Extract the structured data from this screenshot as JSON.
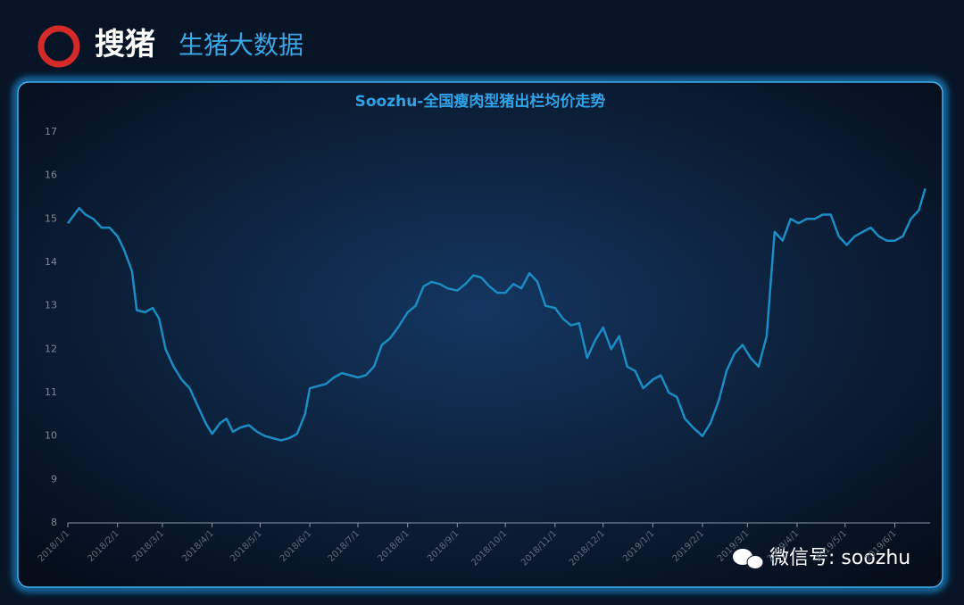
{
  "header": {
    "logo": "搜猪",
    "subtitle": "生猪大数据"
  },
  "watermark": "微信号: soozhu",
  "chart_data": {
    "type": "line",
    "title": "Soozhu-全国瘦肉型猪出栏均价走势",
    "color": "#1b8cc4",
    "x": [
      "2018/1/1",
      "2018/1/5",
      "2018/1/8",
      "2018/1/12",
      "2018/1/17",
      "2018/1/22",
      "2018/1/27",
      "2018/2/1",
      "2018/2/5",
      "2018/2/10",
      "2018/2/13",
      "2018/2/18",
      "2018/2/23",
      "2018/2/27",
      "2018/3/3",
      "2018/3/8",
      "2018/3/13",
      "2018/3/18",
      "2018/3/23",
      "2018/3/28",
      "2018/4/1",
      "2018/4/6",
      "2018/4/10",
      "2018/4/14",
      "2018/4/19",
      "2018/4/24",
      "2018/4/29",
      "2018/5/4",
      "2018/5/9",
      "2018/5/14",
      "2018/5/19",
      "2018/5/24",
      "2018/5/29",
      "2018/6/1",
      "2018/6/6",
      "2018/6/11",
      "2018/6/16",
      "2018/6/21",
      "2018/6/26",
      "2018/7/1",
      "2018/7/6",
      "2018/7/11",
      "2018/7/16",
      "2018/7/21",
      "2018/7/26",
      "2018/8/1",
      "2018/8/6",
      "2018/8/11",
      "2018/8/16",
      "2018/8/21",
      "2018/8/26",
      "2018/9/1",
      "2018/9/6",
      "2018/9/11",
      "2018/9/16",
      "2018/9/21",
      "2018/9/26",
      "2018/10/1",
      "2018/10/6",
      "2018/10/11",
      "2018/10/16",
      "2018/10/21",
      "2018/10/26",
      "2018/11/1",
      "2018/11/6",
      "2018/11/11",
      "2018/11/16",
      "2018/11/21",
      "2018/11/26",
      "2018/12/1",
      "2018/12/6",
      "2018/12/11",
      "2018/12/16",
      "2018/12/21",
      "2018/12/26",
      "2019/1/1",
      "2019/1/6",
      "2019/1/11",
      "2019/1/16",
      "2019/1/21",
      "2019/1/26",
      "2019/2/1",
      "2019/2/6",
      "2019/2/11",
      "2019/2/16",
      "2019/2/21",
      "2019/2/26",
      "2019/3/3",
      "2019/3/8",
      "2019/3/13",
      "2019/3/18",
      "2019/3/23",
      "2019/3/28",
      "2019/4/2",
      "2019/4/7",
      "2019/4/12",
      "2019/4/17",
      "2019/4/22",
      "2019/4/27",
      "2019/5/2",
      "2019/5/7",
      "2019/5/12",
      "2019/5/17",
      "2019/5/22",
      "2019/5/27",
      "2019/6/1",
      "2019/6/6",
      "2019/6/11",
      "2019/6/16",
      "2019/6/20"
    ],
    "values": [
      14.9,
      15.1,
      15.25,
      15.1,
      15.0,
      14.8,
      14.8,
      14.6,
      14.3,
      13.8,
      12.9,
      12.85,
      12.95,
      12.7,
      12.0,
      11.6,
      11.3,
      11.1,
      10.7,
      10.3,
      10.05,
      10.3,
      10.4,
      10.1,
      10.2,
      10.25,
      10.1,
      10.0,
      9.95,
      9.9,
      9.95,
      10.05,
      10.5,
      11.1,
      11.15,
      11.2,
      11.35,
      11.45,
      11.4,
      11.35,
      11.4,
      11.6,
      12.1,
      12.25,
      12.5,
      12.85,
      13.0,
      13.45,
      13.55,
      13.5,
      13.4,
      13.35,
      13.5,
      13.7,
      13.65,
      13.45,
      13.3,
      13.3,
      13.5,
      13.4,
      13.75,
      13.55,
      13.0,
      12.95,
      12.7,
      12.55,
      12.6,
      11.8,
      12.2,
      12.5,
      12.0,
      12.3,
      11.6,
      11.5,
      11.1,
      11.3,
      11.4,
      11.0,
      10.9,
      10.4,
      10.2,
      10.0,
      10.3,
      10.8,
      11.5,
      11.9,
      12.1,
      11.8,
      11.6,
      12.3,
      14.7,
      14.5,
      15.0,
      14.9,
      15.0,
      15.0,
      15.1,
      15.1,
      14.6,
      14.4,
      14.6,
      14.7,
      14.8,
      14.6,
      14.5,
      14.5,
      14.6,
      15.0,
      15.2,
      15.7
    ],
    "xlim": [
      "2018/1/1",
      "2019/6/23"
    ],
    "xticks": [
      "2018/1/1",
      "2018/2/1",
      "2018/3/1",
      "2018/4/1",
      "2018/5/1",
      "2018/6/1",
      "2018/7/1",
      "2018/8/1",
      "2018/9/1",
      "2018/10/1",
      "2018/11/1",
      "2018/12/1",
      "2019/1/1",
      "2019/2/1",
      "2019/3/1",
      "2019/4/1",
      "2019/5/1",
      "2019/6/1"
    ],
    "ylim": [
      8,
      17
    ],
    "yticks": [
      8,
      9,
      10,
      11,
      12,
      13,
      14,
      15,
      16,
      17
    ]
  }
}
